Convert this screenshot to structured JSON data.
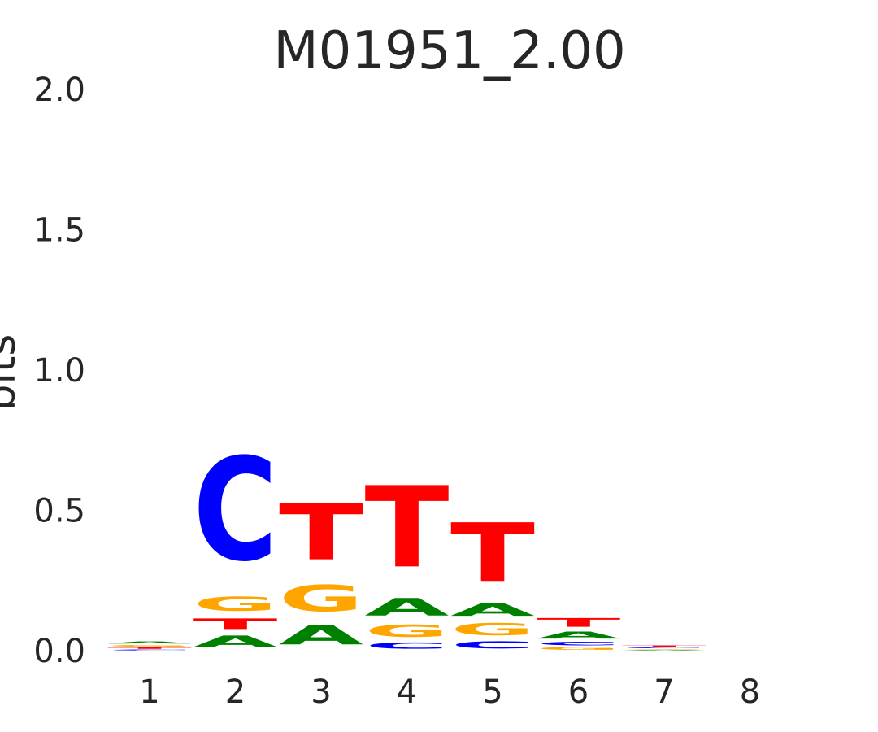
{
  "chart_data": {
    "type": "sequence-logo",
    "title": "M01951_2.00",
    "xlabel": "",
    "ylabel": "bits",
    "ylim": [
      0,
      2
    ],
    "yticks": [
      "0.0",
      "0.5",
      "1.0",
      "1.5",
      "2.0"
    ],
    "ytick_values": [
      0,
      0.5,
      1,
      1.5,
      2
    ],
    "positions": [
      "1",
      "2",
      "3",
      "4",
      "5",
      "6",
      "7",
      "8"
    ],
    "grid": false,
    "colors": {
      "A": "#008000",
      "C": "#0000ff",
      "G": "#ffa500",
      "T": "#ff0000"
    },
    "stacks": [
      [
        {
          "letter": "C",
          "bits": 0.005
        },
        {
          "letter": "T",
          "bits": 0.008
        },
        {
          "letter": "G",
          "bits": 0.01
        },
        {
          "letter": "A",
          "bits": 0.012
        }
      ],
      [
        {
          "letter": "A",
          "bits": 0.065
        },
        {
          "letter": "T",
          "bits": 0.06
        },
        {
          "letter": "G",
          "bits": 0.08
        },
        {
          "letter": "C",
          "bits": 0.59
        }
      ],
      [
        {
          "letter": "A",
          "bits": 0.11
        },
        {
          "letter": "G",
          "bits": 0.15
        },
        {
          "letter": "T",
          "bits": 0.32
        }
      ],
      [
        {
          "letter": "C",
          "bits": 0.035
        },
        {
          "letter": "G",
          "bits": 0.07
        },
        {
          "letter": "A",
          "bits": 0.1
        },
        {
          "letter": "T",
          "bits": 0.465
        }
      ],
      [
        {
          "letter": "C",
          "bits": 0.04
        },
        {
          "letter": "G",
          "bits": 0.07
        },
        {
          "letter": "A",
          "bits": 0.07
        },
        {
          "letter": "T",
          "bits": 0.335
        }
      ],
      [
        {
          "letter": "G",
          "bits": 0.015
        },
        {
          "letter": "C",
          "bits": 0.02
        },
        {
          "letter": "A",
          "bits": 0.04
        },
        {
          "letter": "T",
          "bits": 0.05
        }
      ],
      [
        {
          "letter": "A",
          "bits": 0.004
        },
        {
          "letter": "G",
          "bits": 0.004
        },
        {
          "letter": "C",
          "bits": 0.005
        },
        {
          "letter": "T",
          "bits": 0.007
        }
      ],
      []
    ]
  }
}
